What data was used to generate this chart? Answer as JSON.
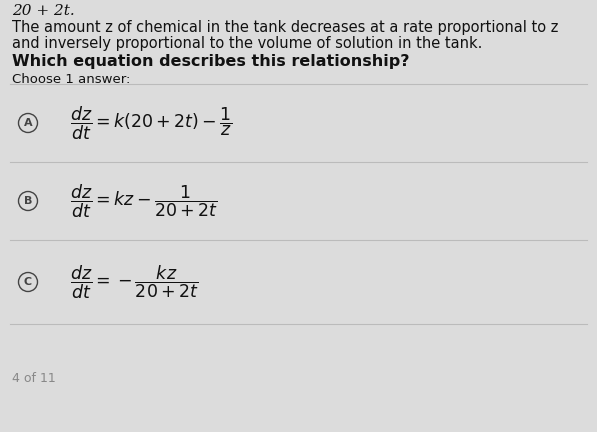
{
  "header_text": "20 + 2t.",
  "body_line1": "The amount z of chemical in the tank decreases at a rate proportional to z",
  "body_line2": "and inversely proportional to the volume of solution in the tank.",
  "question_text": "Which equation describes this relationship?",
  "choose_text": "Choose 1 answer:",
  "bg_color": "#dcdcdc",
  "text_color": "#111111",
  "circle_color": "#444444",
  "divider_color": "#bbbbbb",
  "option_A_math": "$\\dfrac{dz}{dt} = k(20+2t) - \\dfrac{1}{z}$",
  "option_B_math": "$\\dfrac{dz}{dt} = kz - \\dfrac{1}{20+2t}$",
  "option_C_math": "$\\dfrac{dz}{dt} = -\\dfrac{kz}{20+2t}$",
  "labels": [
    "A",
    "B",
    "C"
  ],
  "header_fontsize": 11,
  "body_fontsize": 10.5,
  "question_fontsize": 11.5,
  "choose_fontsize": 9.5,
  "math_fontsize": 12.5,
  "label_fontsize": 8
}
